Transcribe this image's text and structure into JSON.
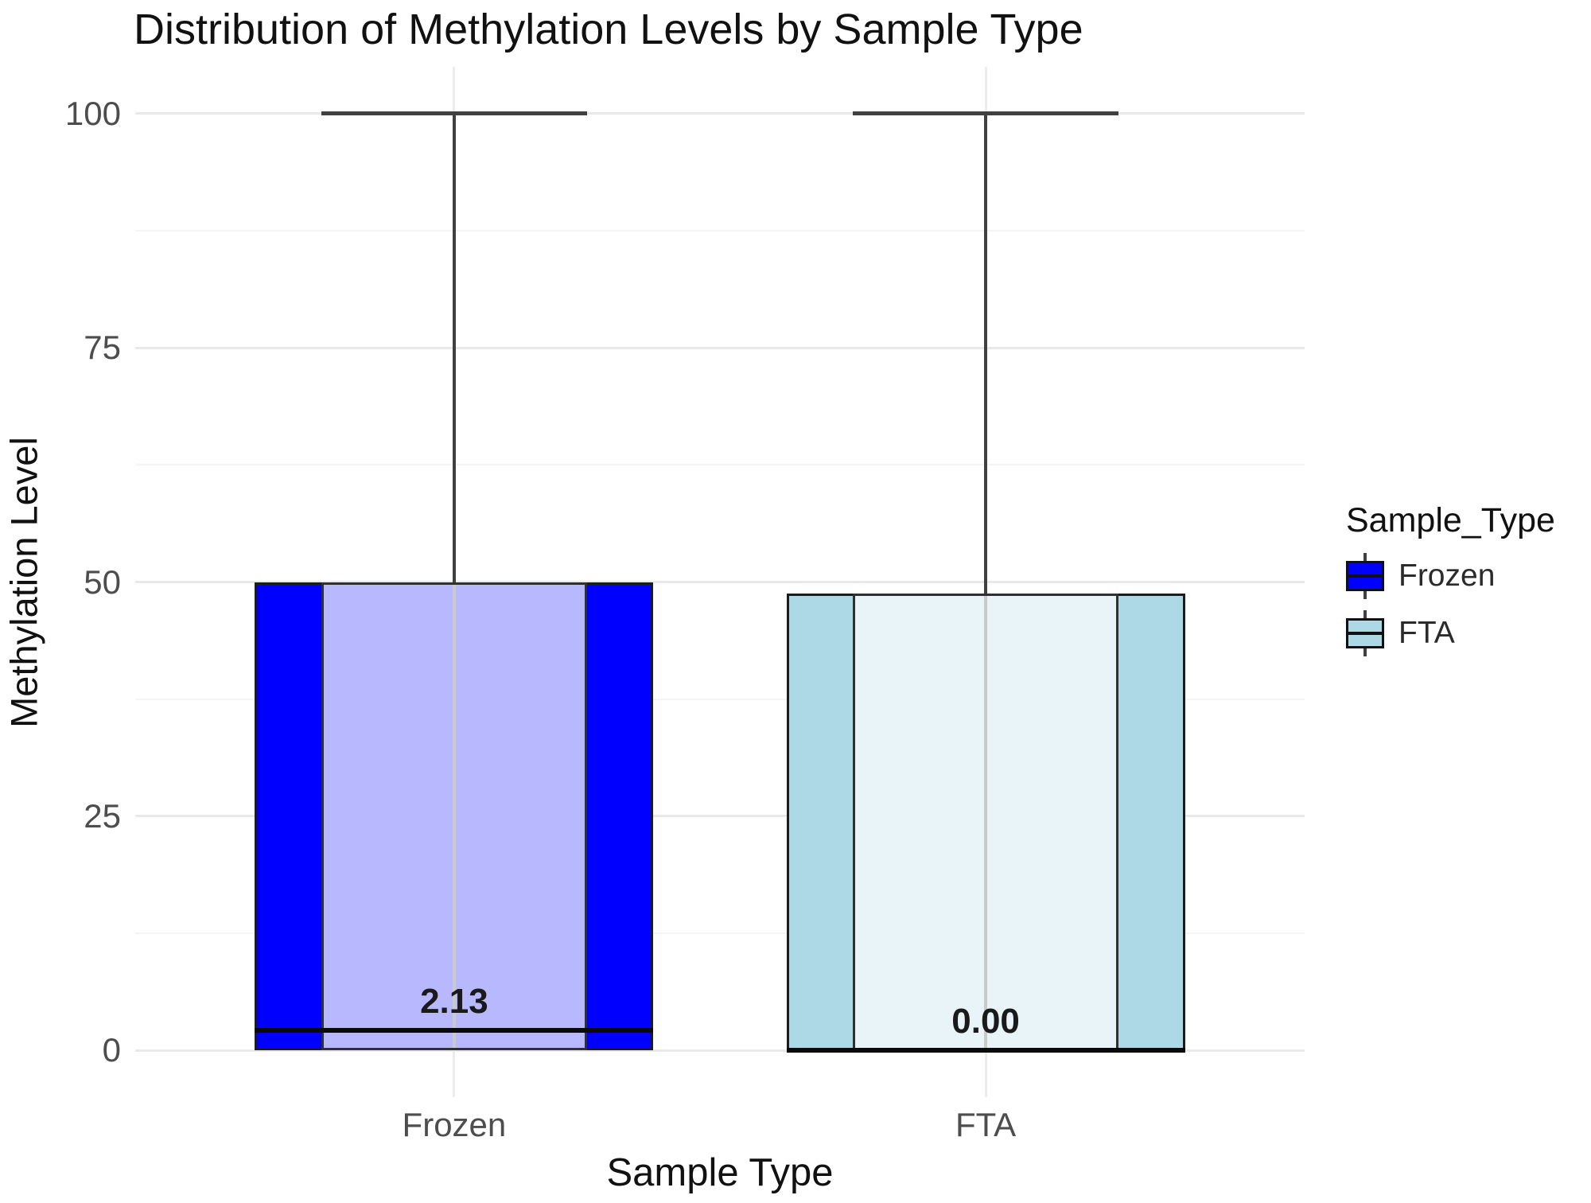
{
  "chart": {
    "title": "Distribution of Methylation Levels by Sample Type",
    "x_axis_title": "Sample Type",
    "y_axis_title": "Methylation Level"
  },
  "legend": {
    "title": "Sample_Type",
    "items": [
      {
        "label": "Frozen",
        "fill": "#0000FF"
      },
      {
        "label": "FTA",
        "fill": "#ADD8E6"
      }
    ]
  },
  "chart_data": {
    "type": "box",
    "title": "Distribution of Methylation Levels by Sample Type",
    "xlabel": "Sample Type",
    "ylabel": "Methylation Level",
    "ylim": [
      0,
      100
    ],
    "y_ticks": [
      0,
      25,
      50,
      75,
      100
    ],
    "y_minor_gridlines": [
      12.5,
      37.5,
      62.5,
      87.5
    ],
    "grid": true,
    "legend_position": "right",
    "legend_title": "Sample_Type",
    "categories": [
      "Frozen",
      "FTA"
    ],
    "series": [
      {
        "name": "Frozen",
        "min": 0,
        "q1": 0,
        "median": 2.13,
        "q3": 50,
        "max": 100,
        "median_label": "2.13",
        "fill": "#0000FF",
        "inner_fill": "#B2B2FF"
      },
      {
        "name": "FTA",
        "min": 0,
        "q1": 0,
        "median": 0,
        "q3": 48.8,
        "max": 100,
        "median_label": "0.00",
        "fill": "#ADD8E6",
        "inner_fill": "#E6F3F7"
      }
    ]
  }
}
